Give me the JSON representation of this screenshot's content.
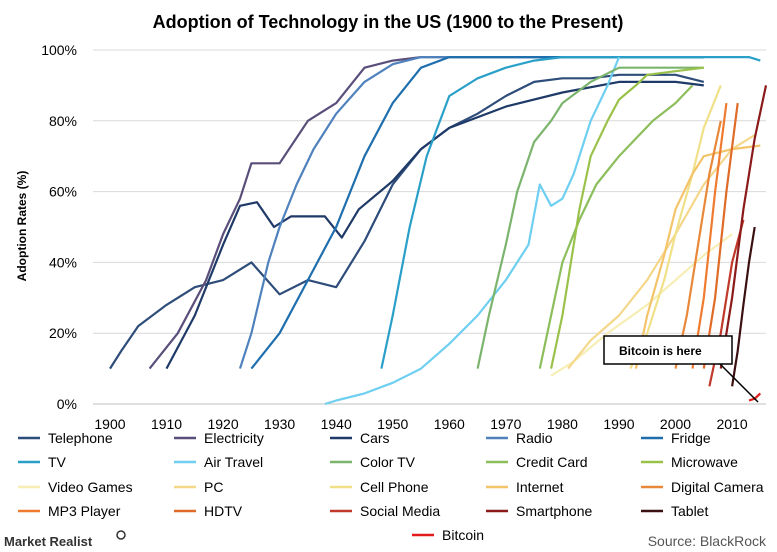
{
  "chart_data": {
    "type": "line",
    "title": "Adoption  of  Technology  in  the  US  (1900  to  the  Present)",
    "ylabel": "Adoption Rates (%)",
    "xlabel": "",
    "xlim": [
      1897,
      2016
    ],
    "ylim": [
      0,
      100
    ],
    "x_ticks": [
      "1900",
      "1910",
      "1920",
      "1930",
      "1940",
      "1950",
      "1960",
      "1970",
      "1980",
      "1990",
      "2000",
      "2010"
    ],
    "x_tick_values": [
      1900,
      1910,
      1920,
      1930,
      1940,
      1950,
      1960,
      1970,
      1980,
      1990,
      2000,
      2010
    ],
    "y_ticks": [
      "0%",
      "20%",
      "40%",
      "60%",
      "80%",
      "100%"
    ],
    "y_tick_values": [
      0,
      20,
      40,
      60,
      80,
      100
    ],
    "grid": "horizontal",
    "legend_position": "bottom",
    "series": [
      {
        "name": "Telephone",
        "color": "#2f4d7a",
        "x": [
          1900,
          1902,
          1905,
          1910,
          1915,
          1920,
          1925,
          1930,
          1935,
          1940,
          1945,
          1950,
          1955,
          1960,
          1965,
          1970,
          1975,
          1980,
          1985,
          1990,
          1995,
          2000,
          2005
        ],
        "y": [
          10,
          15,
          22,
          28,
          33,
          35,
          40,
          31,
          35,
          33,
          46,
          62,
          72,
          78,
          82,
          87,
          91,
          92,
          92,
          93,
          93,
          93,
          91
        ]
      },
      {
        "name": "Electricity",
        "color": "#5a4f7a",
        "x": [
          1907,
          1912,
          1917,
          1920,
          1923,
          1925,
          1927,
          1930,
          1935,
          1940,
          1945,
          1950,
          1955,
          1960,
          2005
        ],
        "y": [
          10,
          20,
          35,
          48,
          58,
          68,
          68,
          68,
          80,
          85,
          95,
          97,
          98,
          98,
          98
        ]
      },
      {
        "name": "Cars",
        "color": "#1f3a68",
        "x": [
          1910,
          1915,
          1920,
          1923,
          1926,
          1929,
          1932,
          1935,
          1938,
          1941,
          1944,
          1950,
          1955,
          1960,
          1970,
          1980,
          1990,
          2000,
          2005
        ],
        "y": [
          10,
          25,
          45,
          56,
          57,
          50,
          53,
          53,
          53,
          47,
          55,
          63,
          72,
          78,
          84,
          88,
          91,
          91,
          90
        ]
      },
      {
        "name": "Radio",
        "color": "#4f81bd",
        "x": [
          1923,
          1925,
          1928,
          1930,
          1933,
          1936,
          1940,
          1945,
          1950,
          1955,
          2005
        ],
        "y": [
          10,
          20,
          40,
          50,
          62,
          72,
          82,
          91,
          96,
          98,
          98
        ]
      },
      {
        "name": "Fridge",
        "color": "#1f6fae",
        "x": [
          1925,
          1930,
          1935,
          1940,
          1945,
          1950,
          1955,
          1960,
          2005
        ],
        "y": [
          10,
          20,
          35,
          50,
          70,
          85,
          95,
          98,
          98
        ]
      },
      {
        "name": "TV",
        "color": "#2aa0c8",
        "x": [
          1948,
          1950,
          1953,
          1956,
          1960,
          1965,
          1970,
          1975,
          1980,
          1990,
          2000,
          2013,
          2015
        ],
        "y": [
          10,
          25,
          50,
          70,
          87,
          92,
          95,
          97,
          98,
          98,
          98,
          98,
          97
        ]
      },
      {
        "name": "Air Travel",
        "color": "#6ecff0",
        "x": [
          1938,
          1940,
          1945,
          1950,
          1955,
          1960,
          1965,
          1970,
          1974,
          1976,
          1978,
          1980,
          1982,
          1985,
          1988,
          1990
        ],
        "y": [
          0,
          1,
          3,
          6,
          10,
          17,
          25,
          35,
          45,
          62,
          56,
          58,
          65,
          80,
          90,
          98
        ]
      },
      {
        "name": "Color TV",
        "color": "#7bb56d",
        "x": [
          1965,
          1967,
          1970,
          1972,
          1975,
          1978,
          1980,
          1985,
          1990,
          2005
        ],
        "y": [
          10,
          25,
          45,
          60,
          74,
          80,
          85,
          91,
          95,
          95
        ]
      },
      {
        "name": "Credit Card",
        "color": "#8cbe5b",
        "x": [
          1976,
          1978,
          1980,
          1983,
          1986,
          1990,
          1993,
          1996,
          2000,
          2003
        ],
        "y": [
          10,
          25,
          40,
          52,
          62,
          70,
          75,
          80,
          85,
          90
        ]
      },
      {
        "name": "Microwave",
        "color": "#9ac24a",
        "x": [
          1978,
          1980,
          1983,
          1985,
          1988,
          1990,
          1993,
          1995,
          2000,
          2005
        ],
        "y": [
          10,
          25,
          55,
          70,
          80,
          86,
          90,
          93,
          94,
          95
        ]
      },
      {
        "name": "Video Games",
        "color": "#f7eeb6",
        "x": [
          1978,
          1982,
          1988,
          1995,
          2000,
          2005,
          2010
        ],
        "y": [
          8,
          12,
          20,
          28,
          35,
          42,
          48
        ]
      },
      {
        "name": "PC",
        "color": "#f5d78a",
        "x": [
          1981,
          1985,
          1990,
          1995,
          2000,
          2005,
          2010,
          2014
        ],
        "y": [
          10,
          18,
          25,
          35,
          48,
          62,
          72,
          76
        ]
      },
      {
        "name": "Cell Phone",
        "color": "#f0e087",
        "x": [
          1992,
          1995,
          1998,
          2000,
          2003,
          2005,
          2008
        ],
        "y": [
          10,
          20,
          35,
          48,
          65,
          78,
          90
        ]
      },
      {
        "name": "Internet",
        "color": "#f3c46a",
        "x": [
          1993,
          1995,
          1998,
          2000,
          2003,
          2005,
          2010,
          2015
        ],
        "y": [
          10,
          25,
          42,
          55,
          65,
          70,
          72,
          73
        ]
      },
      {
        "name": "Digital Camera",
        "color": "#e8883a",
        "x": [
          2000,
          2002,
          2004,
          2006,
          2008
        ],
        "y": [
          10,
          25,
          45,
          65,
          80
        ]
      },
      {
        "name": "MP3 Player",
        "color": "#ee7b2f",
        "x": [
          2003,
          2005,
          2007,
          2009
        ],
        "y": [
          10,
          30,
          60,
          85
        ]
      },
      {
        "name": "HDTV",
        "color": "#e06a27",
        "x": [
          2005,
          2007,
          2009,
          2011
        ],
        "y": [
          10,
          30,
          60,
          85
        ]
      },
      {
        "name": "Social Media",
        "color": "#c0392b",
        "x": [
          2006,
          2008,
          2010,
          2012
        ],
        "y": [
          5,
          20,
          40,
          52
        ]
      },
      {
        "name": "Smartphone",
        "color": "#8b1a1a",
        "x": [
          2008,
          2010,
          2012,
          2014,
          2016
        ],
        "y": [
          10,
          30,
          55,
          75,
          90
        ]
      },
      {
        "name": "Tablet",
        "color": "#3b1010",
        "x": [
          2010,
          2011,
          2012,
          2013,
          2014
        ],
        "y": [
          5,
          15,
          28,
          40,
          50
        ]
      },
      {
        "name": "Bitcoin",
        "color": "#e31a1c",
        "x": [
          2013,
          2014,
          2015
        ],
        "y": [
          1,
          1.5,
          3
        ]
      }
    ],
    "annotation": {
      "text": "Bitcoin is here"
    },
    "source": "Source: BlackRock",
    "brand": "Market Realist"
  }
}
